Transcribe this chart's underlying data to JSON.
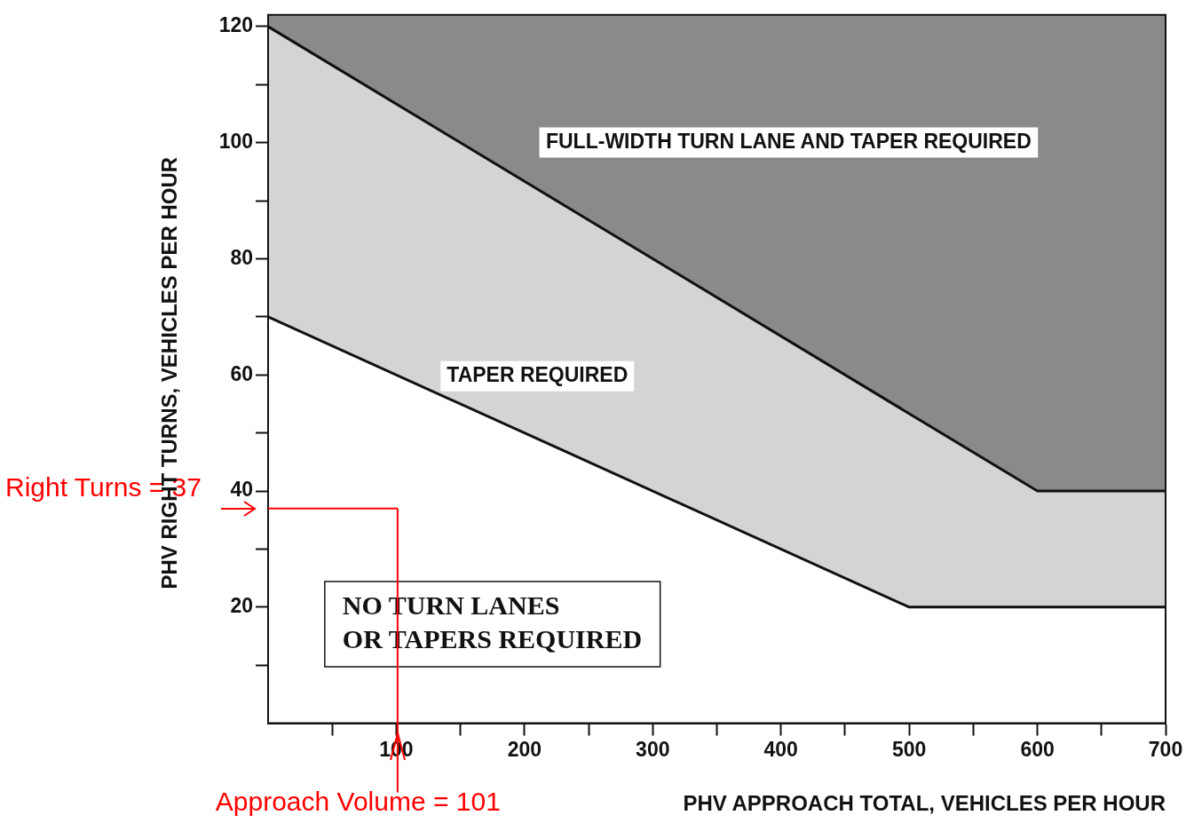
{
  "chart_data": {
    "type": "area",
    "xlabel": "PHV APPROACH TOTAL, VEHICLES PER HOUR",
    "ylabel": "PHV RIGHT TURNS, VEHICLES PER HOUR",
    "series": [
      {
        "color": "#ffffff",
        "x": [
          0,
          500,
          700
        ],
        "values": [
          70,
          20,
          20
        ]
      },
      {
        "color": "#d4d4d4",
        "x": [
          0,
          600,
          700
        ],
        "values": [
          120,
          40,
          40
        ]
      }
    ],
    "xlim": [
      0,
      700
    ],
    "ylim": [
      0,
      122
    ],
    "xticks": [
      {
        "value": 50,
        "label": null
      },
      100,
      {
        "value": 150,
        "label": null
      },
      200,
      {
        "value": 250,
        "label": null
      },
      300,
      {
        "value": 350,
        "label": null
      },
      400,
      {
        "value": 450,
        "label": null
      },
      500,
      {
        "value": 550,
        "label": null
      },
      600,
      {
        "value": 650,
        "label": null
      },
      700
    ],
    "yticks": [
      {
        "value": 10,
        "label": null
      },
      20,
      {
        "value": 30,
        "label": null
      },
      40,
      {
        "value": 50,
        "label": null
      },
      60,
      {
        "value": 70,
        "label": null
      },
      80,
      {
        "value": 90,
        "label": null
      },
      100,
      {
        "value": 110,
        "label": null
      },
      120
    ],
    "legend": false,
    "ref_lines": [
      {
        "axis": "x",
        "value": 101,
        "label": "Approach Volume = 101",
        "color": "#ff0000"
      },
      {
        "axis": "y",
        "value": 37,
        "label": "Right Turns = 37",
        "color": "#ff0000"
      }
    ],
    "annotations": [
      "FULL-WIDTH TURN LANE AND TAPER REQUIRED",
      "TAPER REQUIRED",
      "NO TURN LANES\nOR TAPERS REQUIRED"
    ]
  }
}
